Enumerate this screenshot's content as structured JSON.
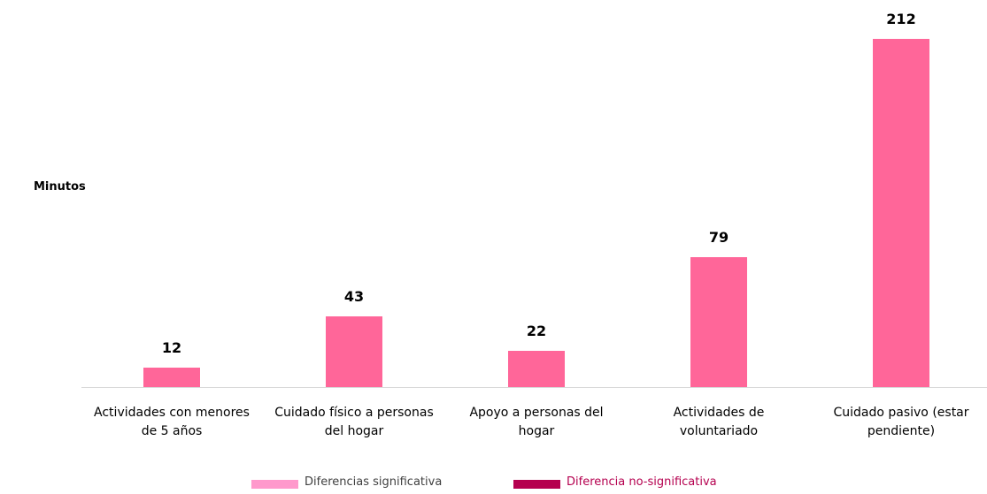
{
  "chart_data": {
    "type": "bar",
    "y_label": "Minutos",
    "categories": [
      "Actividades con menores de 5 años",
      "Cuidado físico a personas del hogar",
      "Apoyo a personas del hogar",
      "Actividades de voluntariado",
      "Cuidado pasivo (estar pendiente)"
    ],
    "values": [
      12,
      43,
      22,
      79,
      212
    ],
    "color": "#ff6699",
    "legend": [
      {
        "name": "Diferencias significativa",
        "color": "#ff99cc"
      },
      {
        "name": "Diferencia no-significativa",
        "color": "#b5004f"
      }
    ]
  }
}
